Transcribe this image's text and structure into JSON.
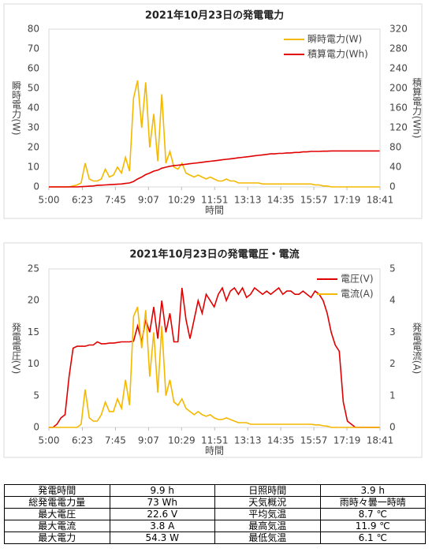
{
  "charts": [
    {
      "type": "line",
      "title": "2021年10月23日の発電電力",
      "x_label": "時間",
      "y_label": "瞬時電力(W)",
      "y2_label": "積算電力(Wh)",
      "x": [
        "5:00",
        "5:10",
        "5:20",
        "5:30",
        "5:40",
        "5:50",
        "6:00",
        "6:10",
        "6:20",
        "6:30",
        "6:40",
        "6:50",
        "7:00",
        "7:10",
        "7:20",
        "7:30",
        "7:40",
        "7:50",
        "8:00",
        "8:10",
        "8:20",
        "8:30",
        "8:40",
        "8:50",
        "9:00",
        "9:10",
        "9:20",
        "9:30",
        "9:40",
        "9:50",
        "10:00",
        "10:10",
        "10:20",
        "10:30",
        "10:40",
        "10:50",
        "11:00",
        "11:10",
        "11:20",
        "11:30",
        "11:40",
        "11:50",
        "12:00",
        "12:10",
        "12:20",
        "12:30",
        "12:40",
        "12:50",
        "13:00",
        "13:10",
        "13:20",
        "13:30",
        "13:40",
        "13:50",
        "14:00",
        "14:10",
        "14:20",
        "14:30",
        "14:40",
        "14:50",
        "15:00",
        "15:10",
        "15:20",
        "15:30",
        "15:40",
        "15:50",
        "16:00",
        "16:10",
        "16:20",
        "16:30",
        "16:40",
        "16:50",
        "17:00",
        "17:10",
        "17:20",
        "17:30",
        "17:40",
        "17:50",
        "18:00",
        "18:10",
        "18:20",
        "18:30",
        "18:40"
      ],
      "xlim": [
        "5:00",
        "18:41"
      ],
      "xticks": [
        "5:00",
        "6:23",
        "7:45",
        "9:07",
        "10:29",
        "11:51",
        "13:13",
        "14:35",
        "15:57",
        "17:19",
        "18:41"
      ],
      "ylim": [
        0,
        80
      ],
      "yticks": [
        0,
        10,
        20,
        30,
        40,
        50,
        60,
        70,
        80
      ],
      "y2lim": [
        0,
        320
      ],
      "y2ticks": [
        0,
        40,
        80,
        120,
        160,
        200,
        240,
        280,
        320
      ],
      "grid": false,
      "series": [
        {
          "name": "瞬時電力(W)",
          "color": "#f5b800",
          "values": [
            0,
            0,
            0,
            0,
            0,
            0,
            0.5,
            1,
            2,
            12,
            4,
            3,
            3,
            4,
            9,
            5,
            6,
            10,
            7,
            15,
            8,
            45,
            54,
            30,
            53,
            20,
            37,
            13,
            47,
            12,
            18,
            10,
            9,
            12,
            7,
            6,
            5,
            6,
            5,
            4,
            5,
            4,
            3,
            3,
            4,
            3,
            3,
            2,
            2,
            2,
            2,
            2,
            2,
            1.5,
            1.5,
            1.5,
            1.5,
            1.5,
            1.5,
            1.5,
            1.5,
            1.5,
            1.5,
            1.5,
            1.5,
            1.5,
            1,
            1,
            0.5,
            0.5,
            0,
            0,
            0,
            0,
            0,
            0,
            0,
            0,
            0,
            0,
            0,
            0,
            0
          ]
        },
        {
          "name": "積算電力(Wh)",
          "color": "#e00000",
          "axis": "y2",
          "values": [
            0,
            0,
            0,
            0,
            0,
            0,
            0,
            0,
            0.5,
            1,
            1.5,
            2,
            3,
            3.5,
            4,
            4.5,
            5,
            5.5,
            6,
            7,
            8,
            11,
            16,
            20,
            25,
            28,
            32,
            34,
            38,
            40,
            42,
            43,
            44,
            45,
            46,
            47,
            48,
            49,
            50,
            51,
            52,
            53,
            54,
            55,
            56,
            57,
            58,
            59,
            60,
            61,
            62,
            63,
            64,
            65,
            66,
            67,
            67,
            68,
            68,
            69,
            69,
            70,
            70,
            71,
            71,
            72,
            72,
            72,
            72.5,
            72.5,
            73,
            73,
            73,
            73,
            73,
            73,
            73,
            73,
            73,
            73,
            73,
            73,
            73
          ]
        }
      ]
    },
    {
      "type": "line",
      "title": "2021年10月23日の発電電圧・電流",
      "x_label": "時間",
      "y_label": "発電電圧(V)",
      "y2_label": "発電電流(A)",
      "x": [
        "5:00",
        "5:10",
        "5:20",
        "5:30",
        "5:40",
        "5:50",
        "6:00",
        "6:10",
        "6:20",
        "6:30",
        "6:40",
        "6:50",
        "7:00",
        "7:10",
        "7:20",
        "7:30",
        "7:40",
        "7:50",
        "8:00",
        "8:10",
        "8:20",
        "8:30",
        "8:40",
        "8:50",
        "9:00",
        "9:10",
        "9:20",
        "9:30",
        "9:40",
        "9:50",
        "10:00",
        "10:10",
        "10:20",
        "10:30",
        "10:40",
        "10:50",
        "11:00",
        "11:10",
        "11:20",
        "11:30",
        "11:40",
        "11:50",
        "12:00",
        "12:10",
        "12:20",
        "12:30",
        "12:40",
        "12:50",
        "13:00",
        "13:10",
        "13:20",
        "13:30",
        "13:40",
        "13:50",
        "14:00",
        "14:10",
        "14:20",
        "14:30",
        "14:40",
        "14:50",
        "15:00",
        "15:10",
        "15:20",
        "15:30",
        "15:40",
        "15:50",
        "16:00",
        "16:10",
        "16:20",
        "16:30",
        "16:40",
        "16:50",
        "17:00",
        "17:10",
        "17:20",
        "17:30",
        "17:40",
        "17:50",
        "18:00",
        "18:10",
        "18:20",
        "18:30",
        "18:40"
      ],
      "xlim": [
        "5:00",
        "18:41"
      ],
      "xticks": [
        "5:00",
        "6:23",
        "7:45",
        "9:07",
        "10:29",
        "11:51",
        "13:13",
        "14:35",
        "15:57",
        "17:19",
        "18:41"
      ],
      "ylim": [
        0,
        25
      ],
      "yticks": [
        0,
        5,
        10,
        15,
        20,
        25
      ],
      "y2lim": [
        0,
        5
      ],
      "y2ticks": [
        0,
        1,
        2,
        3,
        4,
        5
      ],
      "grid": false,
      "series": [
        {
          "name": "電圧(V)",
          "color": "#e00000",
          "values": [
            0,
            0,
            0.5,
            1.5,
            2,
            8,
            12.5,
            12.8,
            12.8,
            12.8,
            13,
            13,
            13.5,
            13.2,
            13.2,
            13.3,
            13.3,
            13.4,
            13.5,
            13.5,
            13.5,
            13.6,
            16,
            13.5,
            17,
            15,
            19,
            14,
            20,
            15,
            18,
            13.5,
            13.5,
            22,
            17,
            14,
            17,
            20,
            18,
            21,
            20,
            19,
            21,
            22,
            20,
            21.5,
            22,
            21,
            22,
            20.5,
            21,
            22,
            21.5,
            21,
            21.5,
            21,
            21.5,
            22,
            21,
            21.5,
            21.5,
            21,
            21,
            21.5,
            21,
            20.5,
            21.5,
            21,
            20,
            18,
            15,
            13,
            12,
            4,
            1,
            0.5,
            0,
            0,
            0,
            0,
            0,
            0,
            0
          ]
        },
        {
          "name": "電流(A)",
          "color": "#f5b800",
          "axis": "y2",
          "values": [
            0,
            0,
            0,
            0,
            0,
            0,
            0,
            0,
            0.1,
            1.2,
            0.3,
            0.2,
            0.2,
            0.4,
            0.8,
            0.5,
            0.5,
            0.9,
            0.6,
            1.5,
            0.7,
            3.5,
            3.8,
            2.5,
            3.7,
            1.6,
            3.0,
            1.1,
            3.2,
            1.0,
            1.5,
            0.8,
            0.7,
            0.9,
            0.6,
            0.5,
            0.4,
            0.5,
            0.4,
            0.35,
            0.4,
            0.3,
            0.25,
            0.25,
            0.3,
            0.25,
            0.2,
            0.15,
            0.15,
            0.15,
            0.1,
            0.1,
            0.1,
            0.1,
            0.1,
            0.1,
            0.1,
            0.1,
            0.1,
            0.1,
            0.1,
            0.1,
            0.1,
            0.1,
            0.1,
            0.1,
            0.08,
            0.08,
            0.05,
            0.04,
            0,
            0,
            0,
            0,
            0,
            0,
            0,
            0,
            0,
            0,
            0,
            0,
            0
          ]
        }
      ]
    }
  ],
  "table": {
    "rows": [
      [
        "発電時間",
        "9.9 h",
        "日照時間",
        "3.9 h"
      ],
      [
        "総発電電力量",
        "73 Wh",
        "天気概況",
        "雨時々曇一時晴"
      ],
      [
        "最大電圧",
        "22.6 V",
        "平均気温",
        "8.7 ℃"
      ],
      [
        "最大電流",
        "3.8 A",
        "最高気温",
        "11.9 ℃"
      ],
      [
        "最大電力",
        "54.3 W",
        "最低気温",
        "6.1 ℃"
      ]
    ]
  }
}
